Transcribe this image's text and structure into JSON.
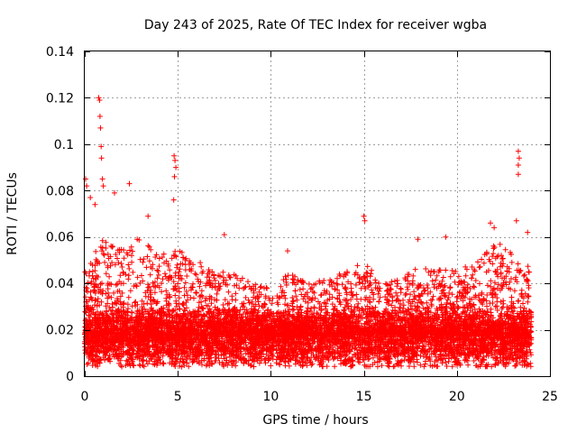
{
  "chart_data": {
    "type": "scatter",
    "title": "Day 243 of 2025, Rate Of TEC Index for receiver wgba",
    "xlabel": "GPS time / hours",
    "ylabel": "ROTI / TECUs",
    "xlim": [
      0,
      25
    ],
    "ylim": [
      0,
      0.14
    ],
    "x_ticks": [
      0,
      5,
      10,
      15,
      20,
      25
    ],
    "x_tick_labels": [
      "0",
      "5",
      "10",
      "15",
      "20",
      "25"
    ],
    "y_ticks": [
      0,
      0.02,
      0.04,
      0.06,
      0.08,
      0.1,
      0.12,
      0.14
    ],
    "y_tick_labels": [
      "0",
      "0.02",
      "0.04",
      "0.06",
      "0.08",
      "0.1",
      "0.12",
      "0.14"
    ],
    "grid": true,
    "marker": "+",
    "color": "#ff0000",
    "series": [
      {
        "name": "ROTI",
        "x_range_hours": [
          0,
          24
        ],
        "typical_range": [
          0.005,
          0.03
        ],
        "peaks": [
          {
            "x": 0.05,
            "y": 0.085
          },
          {
            "x": 0.1,
            "y": 0.082
          },
          {
            "x": 0.3,
            "y": 0.077
          },
          {
            "x": 0.55,
            "y": 0.074
          },
          {
            "x": 0.75,
            "y": 0.12
          },
          {
            "x": 0.8,
            "y": 0.119
          },
          {
            "x": 0.82,
            "y": 0.112
          },
          {
            "x": 0.85,
            "y": 0.107
          },
          {
            "x": 0.88,
            "y": 0.099
          },
          {
            "x": 0.9,
            "y": 0.094
          },
          {
            "x": 0.95,
            "y": 0.085
          },
          {
            "x": 1.0,
            "y": 0.082
          },
          {
            "x": 1.6,
            "y": 0.079
          },
          {
            "x": 2.4,
            "y": 0.083
          },
          {
            "x": 3.4,
            "y": 0.069
          },
          {
            "x": 4.8,
            "y": 0.095
          },
          {
            "x": 4.85,
            "y": 0.093
          },
          {
            "x": 4.9,
            "y": 0.09
          },
          {
            "x": 4.82,
            "y": 0.086
          },
          {
            "x": 4.78,
            "y": 0.076
          },
          {
            "x": 7.5,
            "y": 0.061
          },
          {
            "x": 10.9,
            "y": 0.054
          },
          {
            "x": 15.0,
            "y": 0.069
          },
          {
            "x": 15.05,
            "y": 0.067
          },
          {
            "x": 17.9,
            "y": 0.059
          },
          {
            "x": 19.4,
            "y": 0.06
          },
          {
            "x": 21.8,
            "y": 0.066
          },
          {
            "x": 22.0,
            "y": 0.064
          },
          {
            "x": 23.3,
            "y": 0.097
          },
          {
            "x": 23.35,
            "y": 0.094
          },
          {
            "x": 23.3,
            "y": 0.091
          },
          {
            "x": 23.3,
            "y": 0.087
          },
          {
            "x": 23.2,
            "y": 0.067
          },
          {
            "x": 23.8,
            "y": 0.062
          }
        ],
        "activity_envelope": [
          {
            "x": 0,
            "y": 0.045
          },
          {
            "x": 1,
            "y": 0.06
          },
          {
            "x": 2,
            "y": 0.055
          },
          {
            "x": 3,
            "y": 0.06
          },
          {
            "x": 4,
            "y": 0.052
          },
          {
            "x": 5,
            "y": 0.055
          },
          {
            "x": 6,
            "y": 0.05
          },
          {
            "x": 7,
            "y": 0.045
          },
          {
            "x": 8,
            "y": 0.045
          },
          {
            "x": 9,
            "y": 0.04
          },
          {
            "x": 10,
            "y": 0.038
          },
          {
            "x": 11,
            "y": 0.045
          },
          {
            "x": 12,
            "y": 0.04
          },
          {
            "x": 13,
            "y": 0.042
          },
          {
            "x": 14,
            "y": 0.045
          },
          {
            "x": 15,
            "y": 0.05
          },
          {
            "x": 16,
            "y": 0.04
          },
          {
            "x": 17,
            "y": 0.042
          },
          {
            "x": 18,
            "y": 0.048
          },
          {
            "x": 19,
            "y": 0.048
          },
          {
            "x": 20,
            "y": 0.045
          },
          {
            "x": 21,
            "y": 0.05
          },
          {
            "x": 22,
            "y": 0.058
          },
          {
            "x": 23,
            "y": 0.055
          },
          {
            "x": 24,
            "y": 0.05
          }
        ]
      }
    ]
  }
}
